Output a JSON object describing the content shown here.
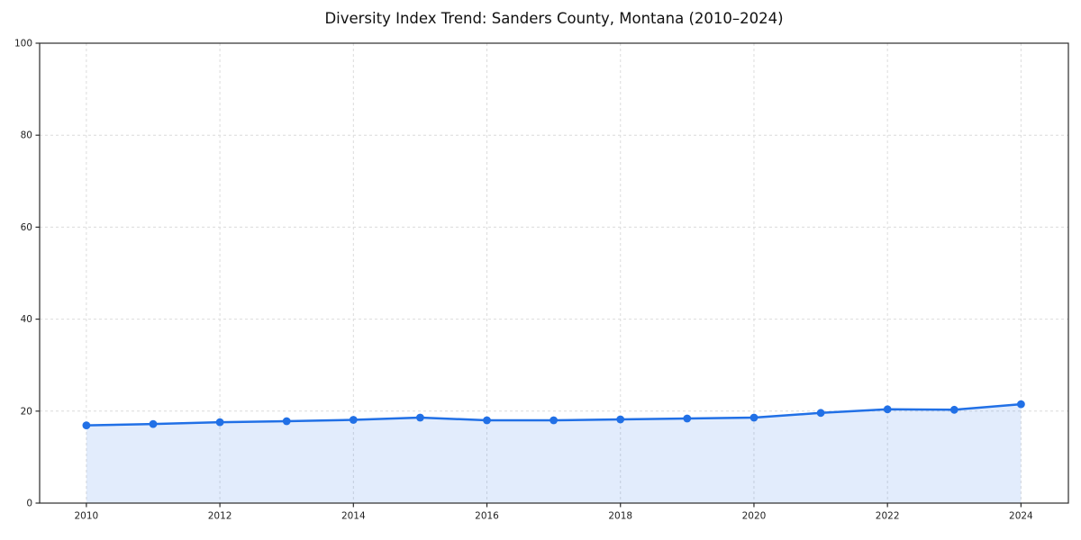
{
  "page": {
    "background": "#ffffff"
  },
  "chart_data": {
    "type": "line",
    "title": "Diversity Index Trend: Sanders County, Montana (2010–2024)",
    "xlabel": "",
    "ylabel": "",
    "x": [
      2010,
      2011,
      2012,
      2013,
      2014,
      2015,
      2016,
      2017,
      2018,
      2019,
      2020,
      2021,
      2022,
      2023,
      2024
    ],
    "series": [
      {
        "name": "Diversity Index",
        "values": [
          16.9,
          17.2,
          17.6,
          17.8,
          18.1,
          18.6,
          18.0,
          18.0,
          18.2,
          18.4,
          18.6,
          19.6,
          20.4,
          20.3,
          21.5
        ]
      }
    ],
    "xlim": [
      2009.3,
      2024.71
    ],
    "ylim": [
      0,
      100
    ],
    "xticks": [
      2010,
      2012,
      2014,
      2016,
      2018,
      2020,
      2022,
      2024
    ],
    "yticks": [
      0,
      20,
      40,
      60,
      80,
      100
    ],
    "grid": true,
    "grid_style": "dashed",
    "legend_position": "none",
    "marker": "circle",
    "colors": {
      "line": "#2170e6",
      "marker": "#2170e6",
      "area_fill": "rgba(33, 112, 230, 0.13)",
      "grid": "#dcdcdc",
      "spine": "#2b2b2b",
      "tick": "#2b2b2b",
      "tick_label": "#222222",
      "title": "#111111"
    }
  }
}
